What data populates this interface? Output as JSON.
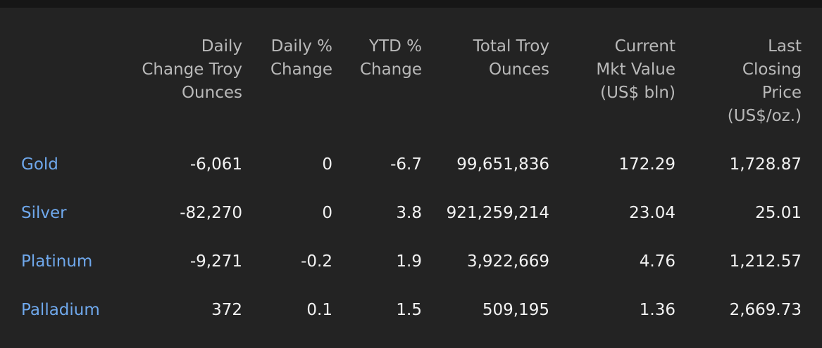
{
  "colors": {
    "background": "#232323",
    "top_strip": "#161616",
    "header_text": "#b9b9b9",
    "link_text": "#6fa8ec",
    "value_text": "#f2f2f2"
  },
  "table": {
    "columns": [
      {
        "key": "daily_change",
        "lines": [
          "Daily",
          "Change Troy",
          "Ounces"
        ]
      },
      {
        "key": "daily_pct",
        "lines": [
          "Daily %",
          "Change"
        ]
      },
      {
        "key": "ytd_pct",
        "lines": [
          "YTD %",
          "Change"
        ]
      },
      {
        "key": "total_oz",
        "lines": [
          "Total Troy",
          "Ounces"
        ]
      },
      {
        "key": "mkt_value",
        "lines": [
          "Current",
          "Mkt Value",
          "(US$ bln)"
        ]
      },
      {
        "key": "last_price",
        "lines": [
          "Last",
          "Closing",
          "Price",
          "(US$/oz.)"
        ]
      }
    ],
    "rows": [
      {
        "metal": "Gold",
        "values": [
          "-6,061",
          "0",
          "-6.7",
          "99,651,836",
          "172.29",
          "1,728.87"
        ]
      },
      {
        "metal": "Silver",
        "values": [
          "-82,270",
          "0",
          "3.8",
          "921,259,214",
          "23.04",
          "25.01"
        ]
      },
      {
        "metal": "Platinum",
        "values": [
          "-9,271",
          "-0.2",
          "1.9",
          "3,922,669",
          "4.76",
          "1,212.57"
        ]
      },
      {
        "metal": "Palladium",
        "values": [
          "372",
          "0.1",
          "1.5",
          "509,195",
          "1.36",
          "2,669.73"
        ]
      }
    ]
  }
}
